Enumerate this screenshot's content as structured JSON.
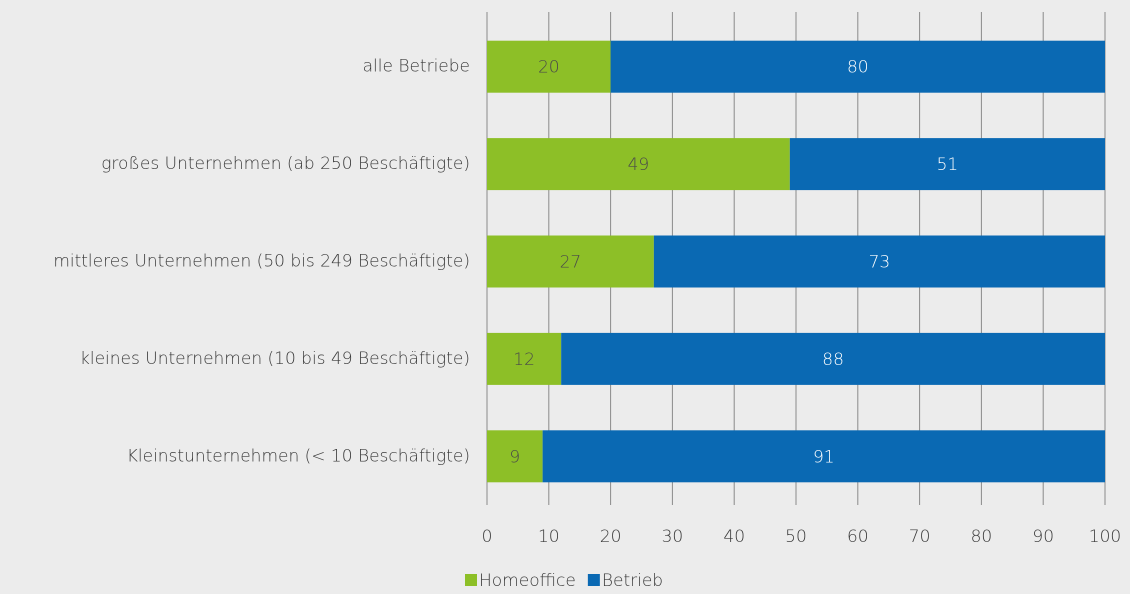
{
  "chart_data": {
    "type": "bar",
    "orientation": "horizontal",
    "stacked": true,
    "categories": [
      "alle Betriebe",
      "großes Unternehmen (ab 250 Beschäftigte)",
      "mittleres Unternehmen (50 bis 249 Beschäftigte)",
      "kleines Unternehmen (10 bis 49 Beschäftigte)",
      "Kleinstunternehmen (< 10 Beschäftigte)"
    ],
    "series": [
      {
        "name": "Homeoffice",
        "color": "#8dbf27",
        "values": [
          20,
          49,
          27,
          12,
          9
        ]
      },
      {
        "name": "Betrieb",
        "color": "#0a69b3",
        "values": [
          80,
          51,
          73,
          88,
          91
        ]
      }
    ],
    "xlim": [
      0,
      100
    ],
    "xticks": [
      0,
      10,
      20,
      30,
      40,
      50,
      60,
      70,
      80,
      90,
      100
    ],
    "grid": true,
    "legend": "bottom"
  }
}
